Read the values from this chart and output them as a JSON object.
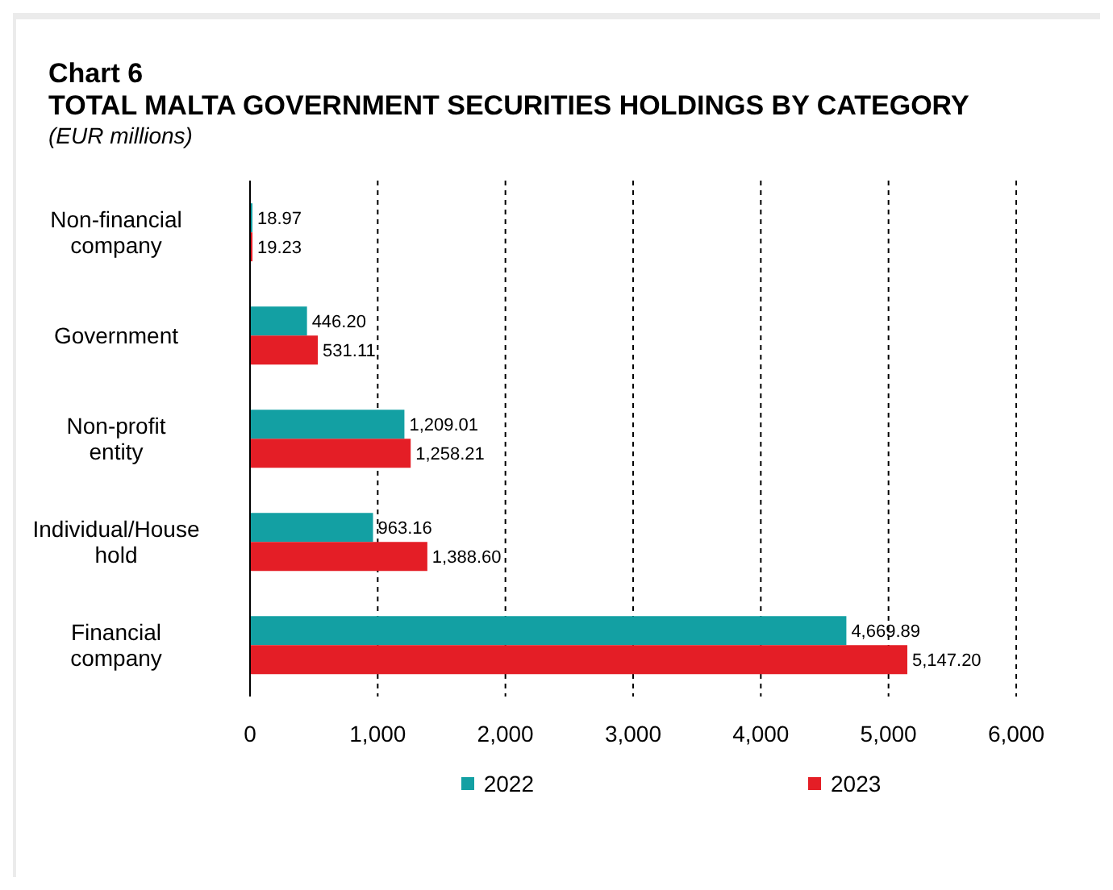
{
  "chart_data": {
    "type": "bar",
    "orientation": "horizontal",
    "title": "Chart 6",
    "subtitle": "TOTAL MALTA GOVERNMENT SECURITIES HOLDINGS BY CATEGORY",
    "annotations": [
      "(EUR millions)"
    ],
    "categories": [
      "Non-financial company",
      "Government",
      "Non-profit entity",
      "Individual/House hold",
      "Financial company"
    ],
    "series": [
      {
        "name": "2022",
        "color": "#13a0a3",
        "values": [
          18.97,
          446.2,
          1209.01,
          963.16,
          4669.89
        ],
        "value_labels": [
          "18.97",
          "446.20",
          "1,209.01",
          "963.16",
          "4,669.89"
        ]
      },
      {
        "name": "2023",
        "color": "#e41e26",
        "values": [
          19.23,
          531.11,
          1258.21,
          1388.6,
          5147.2
        ],
        "value_labels": [
          "19.23",
          "531.11",
          "1,258.21",
          "1,388.60",
          "5,147.20"
        ]
      }
    ],
    "xlim": [
      0,
      6000
    ],
    "xticks": [
      0,
      {
        "value": 1000,
        "label": "1,000"
      },
      {
        "value": 2000,
        "label": "2,000"
      },
      {
        "value": 3000,
        "label": "3,000"
      },
      {
        "value": 4000,
        "label": "4,000"
      },
      {
        "value": 5000,
        "label": "5,000"
      },
      {
        "value": 6000,
        "label": "6,000"
      }
    ],
    "grid": "x",
    "legend": "bottom"
  }
}
